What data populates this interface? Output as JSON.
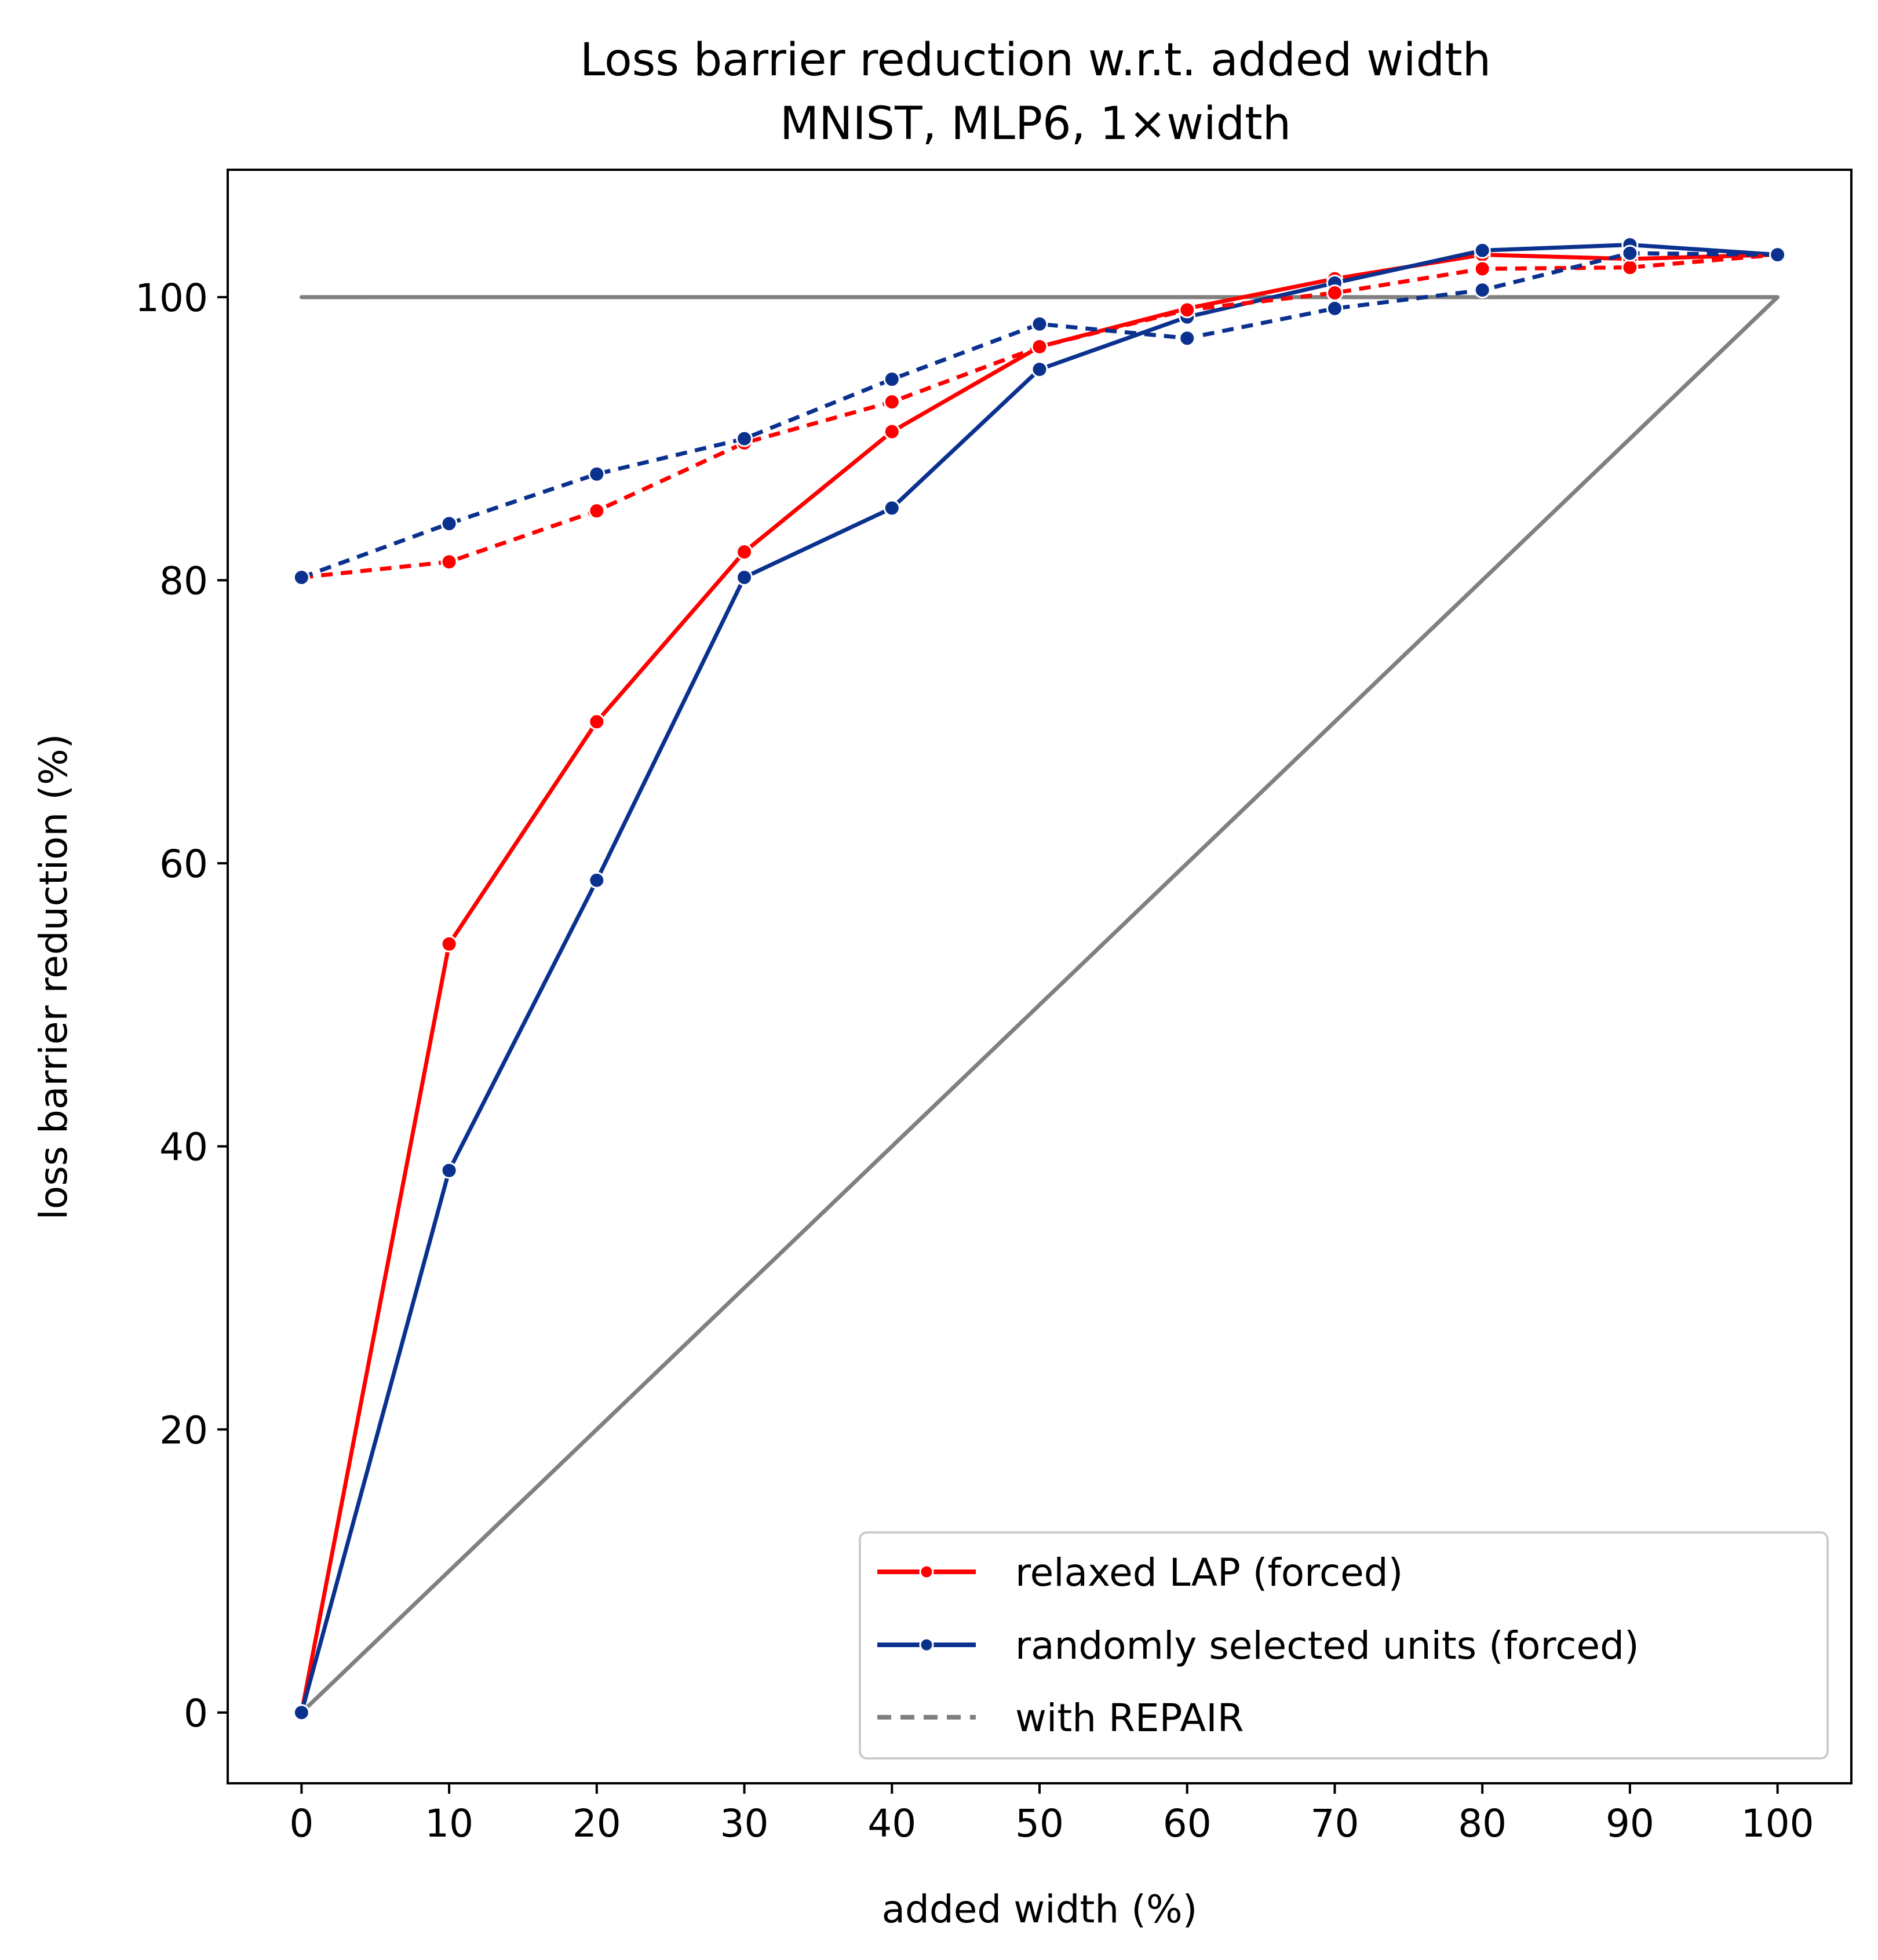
{
  "chart_data": {
    "type": "line",
    "title": "Loss barrier reduction w.r.t. added width",
    "subtitle": "MNIST, MLP6, 1×width",
    "xlabel": "added width (%)",
    "ylabel": "loss barrier reduction (%)",
    "xlim": [
      -5,
      105
    ],
    "ylim": [
      -5,
      109
    ],
    "x_ticks": [
      0,
      10,
      20,
      30,
      40,
      50,
      60,
      70,
      80,
      90,
      100
    ],
    "y_ticks": [
      0,
      20,
      40,
      60,
      80,
      100
    ],
    "grid": false,
    "legend_position": "bottom-right",
    "legend": [
      {
        "label": "relaxed LAP (forced)",
        "color": "#ff0000",
        "style": "solid-marker"
      },
      {
        "label": "randomly selected units (forced)",
        "color": "#0b318f",
        "style": "solid-marker"
      },
      {
        "label": "with REPAIR",
        "color": "#808080",
        "style": "dashed"
      }
    ],
    "x": [
      0,
      10,
      20,
      30,
      40,
      50,
      60,
      70,
      80,
      90,
      100
    ],
    "series": [
      {
        "name": "relaxed LAP (forced)",
        "color": "#ff0000",
        "dashed": false,
        "markers": true,
        "values": [
          0,
          54.3,
          70.0,
          82.0,
          90.5,
          96.5,
          99.2,
          101.3,
          103.0,
          102.7,
          103.0
        ]
      },
      {
        "name": "randomly selected units (forced)",
        "color": "#0b318f",
        "dashed": false,
        "markers": true,
        "values": [
          0,
          38.3,
          58.8,
          80.2,
          85.1,
          94.9,
          98.6,
          101.0,
          103.3,
          103.7,
          103.0
        ]
      },
      {
        "color": "#ff0000",
        "dashed": true,
        "markers": true,
        "values": [
          80.2,
          81.3,
          84.9,
          89.7,
          92.6,
          96.5,
          99.1,
          100.3,
          102.0,
          102.1,
          103.0
        ]
      },
      {
        "color": "#0b318f",
        "dashed": true,
        "markers": true,
        "values": [
          80.2,
          84.0,
          87.5,
          90.0,
          94.2,
          98.1,
          97.1,
          99.2,
          100.5,
          103.1,
          103.0
        ]
      },
      {
        "color": "#808080",
        "dashed": false,
        "markers": false,
        "values": [
          100,
          100,
          100,
          100,
          100,
          100,
          100,
          100,
          100,
          100,
          100
        ]
      },
      {
        "color": "#808080",
        "dashed": false,
        "markers": false,
        "values": [
          0,
          10,
          20,
          30,
          40,
          50,
          60,
          70,
          80,
          90,
          100
        ]
      }
    ]
  }
}
